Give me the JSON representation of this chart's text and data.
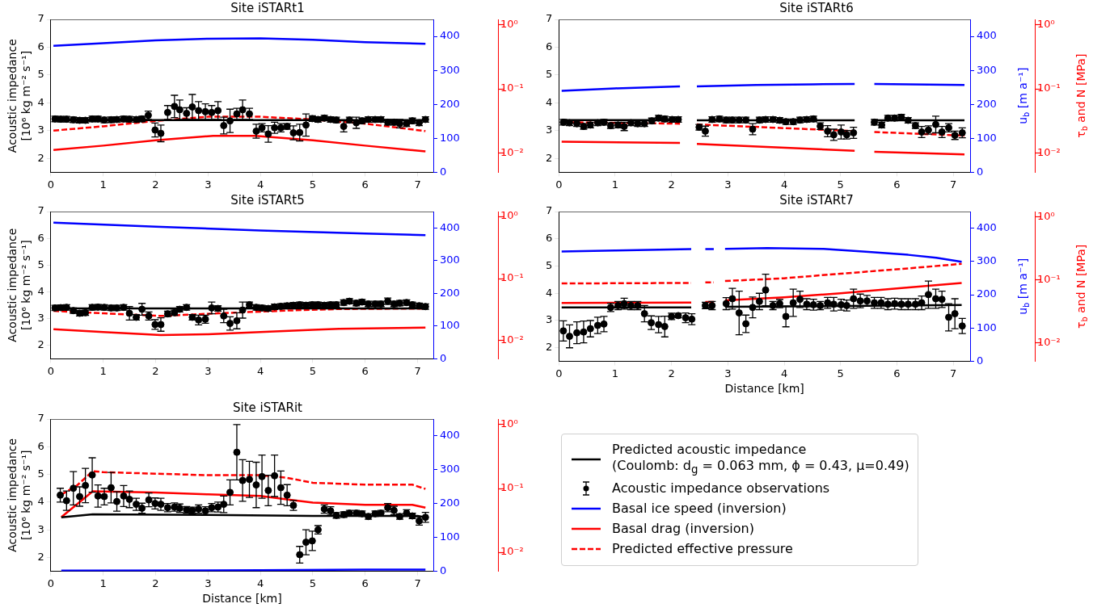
{
  "chart_data": [
    {
      "type": "line",
      "title": "Site iSTARt1",
      "ylabel": "Acoustic impedance\n[10⁶ kg m⁻² s⁻¹]",
      "xlim": [
        0,
        7.3
      ],
      "xticks": [
        0,
        1,
        2,
        3,
        4,
        5,
        6,
        7
      ],
      "ylim": [
        1.5,
        7
      ],
      "yticks": [
        2,
        3,
        4,
        5,
        6,
        7
      ],
      "y2lim": [
        0,
        450
      ],
      "y2ticks": [
        0,
        100,
        200,
        300,
        400
      ],
      "y3lim": [
        0.005,
        1.2
      ],
      "y3ticks": [
        {
          "value": 0.01,
          "label": "10⁻²"
        },
        {
          "value": 0.1,
          "label": "10⁻¹"
        },
        {
          "value": 1,
          "label": "10⁰"
        }
      ],
      "log": "y3",
      "series": [
        {
          "type": "line",
          "color": "#000000",
          "x": [
            0.05,
            7.15
          ],
          "values": [
            3.38,
            3.38
          ]
        },
        {
          "type": "scatter",
          "color": "#000000",
          "marker": "circle",
          "x": [
            0.08,
            0.19,
            0.3,
            0.43,
            0.55,
            0.66,
            0.79,
            0.9,
            1.02,
            1.15,
            1.26,
            1.39,
            1.5,
            1.63,
            1.74,
            1.86,
            1.99,
            2.1,
            2.23,
            2.36,
            2.46,
            2.59,
            2.7,
            2.82,
            2.95,
            3.07,
            3.19,
            3.3,
            3.42,
            3.55,
            3.66,
            3.79,
            3.92,
            4.03,
            4.15,
            4.27,
            4.39,
            4.51,
            4.63,
            4.75,
            4.87,
            4.99,
            5.1,
            5.22,
            5.34,
            5.45,
            5.59,
            5.7,
            5.83,
            5.94,
            6.06,
            6.19,
            6.3,
            6.43,
            6.55,
            6.66,
            6.79,
            6.9,
            7.03,
            7.15
          ],
          "values": [
            3.42,
            3.41,
            3.41,
            3.39,
            3.37,
            3.37,
            3.42,
            3.42,
            3.38,
            3.39,
            3.4,
            3.42,
            3.41,
            3.4,
            3.42,
            3.55,
            3.02,
            2.9,
            3.65,
            3.87,
            3.75,
            3.62,
            3.85,
            3.72,
            3.68,
            3.65,
            3.72,
            3.18,
            3.35,
            3.6,
            3.75,
            3.6,
            2.98,
            3.1,
            2.88,
            3.1,
            3.1,
            3.15,
            2.92,
            2.93,
            3.2,
            3.43,
            3.4,
            3.45,
            3.4,
            3.38,
            3.15,
            3.38,
            3.28,
            3.35,
            3.4,
            3.4,
            3.4,
            3.3,
            3.3,
            3.25,
            3.25,
            3.35,
            3.28,
            3.4
          ],
          "errors": [
            0.1,
            0.1,
            0.1,
            0.1,
            0.1,
            0.1,
            0.1,
            0.1,
            0.1,
            0.1,
            0.1,
            0.1,
            0.1,
            0.1,
            0.1,
            0.15,
            0.25,
            0.3,
            0.25,
            0.4,
            0.35,
            0.2,
            0.45,
            0.32,
            0.28,
            0.25,
            0.32,
            0.3,
            0.42,
            0.2,
            0.35,
            0.2,
            0.25,
            0.15,
            0.3,
            0.2,
            0.15,
            0.1,
            0.25,
            0.3,
            0.4,
            0.1,
            0.1,
            0.1,
            0.1,
            0.1,
            0.2,
            0.1,
            0.2,
            0.1,
            0.1,
            0.1,
            0.1,
            0.1,
            0.1,
            0.15,
            0.1,
            0.1,
            0.1,
            0.1
          ]
        },
        {
          "type": "line",
          "axis": "y2",
          "color": "#0000ff",
          "x": [
            0.05,
            1,
            2,
            3,
            4,
            5,
            6,
            7.15
          ],
          "values": [
            372,
            380,
            388,
            393,
            394,
            390,
            383,
            378
          ]
        },
        {
          "type": "line",
          "axis": "y3",
          "color": "#ff0000",
          "x": [
            0.05,
            1,
            2,
            3.1,
            3.9,
            5,
            6,
            7.15
          ],
          "values": [
            0.0111,
            0.013,
            0.0157,
            0.0185,
            0.0185,
            0.0157,
            0.013,
            0.0106
          ]
        },
        {
          "type": "line",
          "axis": "y3",
          "color": "#ff0000",
          "line_style": "dashed",
          "x": [
            0.05,
            1,
            2,
            3,
            4,
            5,
            6,
            7.15
          ],
          "values": [
            0.0223,
            0.026,
            0.0316,
            0.0366,
            0.0366,
            0.0332,
            0.0286,
            0.0219
          ]
        }
      ]
    },
    {
      "type": "line",
      "title": "Site iSTARt6",
      "y2label": "u$_{b}$ [m a⁻¹]",
      "y3label": "τ$_{b}$ and N [MPa]",
      "xlim": [
        0,
        7.3
      ],
      "xticks": [
        0,
        1,
        2,
        3,
        4,
        5,
        6,
        7
      ],
      "ylim": [
        1.5,
        7
      ],
      "yticks": [
        2,
        3,
        4,
        5,
        6,
        7
      ],
      "y2lim": [
        0,
        450
      ],
      "y2ticks": [
        0,
        100,
        200,
        300,
        400
      ],
      "y3lim": [
        0.005,
        1.2
      ],
      "y3ticks": [
        {
          "value": 0.01,
          "label": "10⁻²"
        },
        {
          "value": 0.1,
          "label": "10⁻¹"
        },
        {
          "value": 1,
          "label": "10⁰"
        }
      ],
      "log": "y3",
      "series": [
        {
          "type": "line",
          "color": "#000000",
          "x": [
            0.05,
            2.15,
            2.3,
            2.45,
            5.25,
            5.4,
            5.6,
            7.2
          ],
          "values": [
            3.38,
            3.38,
            null,
            3.37,
            3.37,
            null,
            3.37,
            3.37
          ]
        },
        {
          "type": "scatter",
          "color": "#000000",
          "marker": "circle",
          "x": [
            0.08,
            0.19,
            0.32,
            0.44,
            0.56,
            0.69,
            0.8,
            0.92,
            1.05,
            1.16,
            1.28,
            1.4,
            1.52,
            1.65,
            1.77,
            1.88,
            2.01,
            2.12,
            2.49,
            2.6,
            2.72,
            2.85,
            2.97,
            3.08,
            3.2,
            3.32,
            3.44,
            3.56,
            3.67,
            3.8,
            3.92,
            4.03,
            4.16,
            4.28,
            4.4,
            4.52,
            4.64,
            4.77,
            4.88,
            5.01,
            5.11,
            5.23,
            5.6,
            5.73,
            5.84,
            5.96,
            6.08,
            6.2,
            6.33,
            6.44,
            6.56,
            6.69,
            6.8,
            6.92,
            7.03,
            7.16
          ],
          "values": [
            3.3,
            3.28,
            3.25,
            3.15,
            3.2,
            3.28,
            3.3,
            3.18,
            3.2,
            3.15,
            3.28,
            3.25,
            3.25,
            3.35,
            3.45,
            3.42,
            3.4,
            3.4,
            3.12,
            2.98,
            3.4,
            3.42,
            3.38,
            3.38,
            3.38,
            3.38,
            3.05,
            3.38,
            3.4,
            3.4,
            3.37,
            3.32,
            3.32,
            3.38,
            3.4,
            3.42,
            3.16,
            2.98,
            2.85,
            2.95,
            2.85,
            2.92,
            3.3,
            3.2,
            3.45,
            3.45,
            3.48,
            3.37,
            3.18,
            2.95,
            3.02,
            3.22,
            2.95,
            3.1,
            2.83,
            2.92
          ],
          "errors": [
            0.1,
            0.1,
            0.1,
            0.1,
            0.1,
            0.1,
            0.1,
            0.1,
            0.1,
            0.15,
            0.1,
            0.1,
            0.1,
            0.1,
            0.1,
            0.1,
            0.1,
            0.1,
            0.1,
            0.18,
            0.1,
            0.1,
            0.1,
            0.1,
            0.1,
            0.1,
            0.2,
            0.1,
            0.1,
            0.1,
            0.1,
            0.1,
            0.1,
            0.1,
            0.1,
            0.1,
            0.12,
            0.2,
            0.2,
            0.25,
            0.15,
            0.2,
            0.1,
            0.1,
            0.1,
            0.1,
            0.1,
            0.1,
            0.1,
            0.2,
            0.15,
            0.3,
            0.2,
            0.15,
            0.15,
            0.18
          ]
        },
        {
          "type": "line",
          "axis": "y2",
          "color": "#0000ff",
          "x": [
            0.05,
            1,
            2.15,
            2.3,
            2.45,
            3.5,
            4.5,
            5.25,
            5.4,
            5.6,
            7.2
          ],
          "values": [
            240,
            247,
            253,
            null,
            253,
            257,
            259,
            260,
            null,
            260,
            257
          ]
        },
        {
          "type": "line",
          "axis": "y3",
          "color": "#ff0000",
          "x": [
            0.05,
            2.15,
            2.3,
            2.45,
            5.25,
            5.4,
            5.6,
            7.2
          ],
          "values": [
            0.015,
            0.0143,
            null,
            0.0138,
            0.0108,
            null,
            0.0104,
            0.0095
          ]
        },
        {
          "type": "line",
          "axis": "y3",
          "color": "#ff0000",
          "line_style": "dashed",
          "x": [
            0.05,
            2.15,
            2.3,
            2.45,
            5.25,
            5.4,
            5.6,
            7.2
          ],
          "values": [
            0.0301,
            0.0286,
            null,
            0.0278,
            0.0219,
            null,
            0.0212,
            0.0186
          ]
        }
      ]
    },
    {
      "type": "line",
      "title": "Site iSTARt5",
      "ylabel": "Acoustic impedance\n[10⁶ kg m⁻² s⁻¹]",
      "xlim": [
        0,
        7.3
      ],
      "xticks": [
        0,
        1,
        2,
        3,
        4,
        5,
        6,
        7
      ],
      "ylim": [
        1.5,
        7
      ],
      "yticks": [
        2,
        3,
        4,
        5,
        6,
        7
      ],
      "y2lim": [
        0,
        450
      ],
      "y2ticks": [
        0,
        100,
        200,
        300,
        400
      ],
      "y3lim": [
        0.005,
        1.2
      ],
      "y3ticks": [
        {
          "value": 0.01,
          "label": "10⁻²"
        },
        {
          "value": 0.1,
          "label": "10⁻¹"
        },
        {
          "value": 1,
          "label": "10⁰"
        }
      ],
      "log": "y3",
      "series": [
        {
          "type": "line",
          "color": "#000000",
          "x": [
            0.05,
            7.15
          ],
          "values": [
            3.38,
            3.38
          ]
        },
        {
          "type": "scatter",
          "color": "#000000",
          "marker": "circle",
          "x": [
            0.08,
            0.19,
            0.3,
            0.43,
            0.55,
            0.66,
            0.79,
            0.9,
            1.02,
            1.15,
            1.26,
            1.39,
            1.5,
            1.63,
            1.74,
            1.87,
            1.99,
            2.1,
            2.23,
            2.36,
            2.46,
            2.59,
            2.7,
            2.82,
            2.95,
            3.07,
            3.19,
            3.3,
            3.42,
            3.55,
            3.66,
            3.79,
            3.92,
            4.03,
            4.15,
            4.27,
            4.39,
            4.51,
            4.63,
            4.75,
            4.87,
            4.99,
            5.1,
            5.22,
            5.34,
            5.45,
            5.59,
            5.7,
            5.83,
            5.94,
            6.06,
            6.19,
            6.3,
            6.43,
            6.55,
            6.66,
            6.79,
            6.9,
            7.03,
            7.15
          ],
          "values": [
            3.4,
            3.41,
            3.42,
            3.3,
            3.2,
            3.22,
            3.42,
            3.43,
            3.42,
            3.4,
            3.4,
            3.42,
            3.2,
            3.05,
            3.35,
            3.1,
            2.78,
            2.78,
            3.18,
            3.22,
            3.35,
            3.42,
            3.05,
            2.95,
            2.98,
            3.4,
            3.38,
            3.1,
            2.82,
            2.92,
            3.32,
            3.52,
            3.42,
            3.4,
            3.38,
            3.44,
            3.46,
            3.48,
            3.5,
            3.52,
            3.5,
            3.52,
            3.52,
            3.5,
            3.52,
            3.52,
            3.6,
            3.65,
            3.58,
            3.62,
            3.55,
            3.55,
            3.55,
            3.65,
            3.55,
            3.58,
            3.6,
            3.52,
            3.48,
            3.45
          ],
          "errors": [
            0.1,
            0.1,
            0.1,
            0.1,
            0.1,
            0.1,
            0.1,
            0.1,
            0.1,
            0.1,
            0.1,
            0.1,
            0.25,
            0.1,
            0.22,
            0.15,
            0.18,
            0.25,
            0.1,
            0.1,
            0.1,
            0.1,
            0.1,
            0.18,
            0.15,
            0.22,
            0.1,
            0.25,
            0.25,
            0.3,
            0.3,
            0.1,
            0.1,
            0.1,
            0.1,
            0.1,
            0.1,
            0.1,
            0.1,
            0.1,
            0.1,
            0.1,
            0.1,
            0.1,
            0.1,
            0.1,
            0.1,
            0.1,
            0.1,
            0.1,
            0.1,
            0.1,
            0.1,
            0.12,
            0.1,
            0.1,
            0.1,
            0.1,
            0.1,
            0.1
          ]
        },
        {
          "type": "line",
          "axis": "y2",
          "color": "#0000ff",
          "x": [
            0.05,
            2,
            4,
            6,
            7.15
          ],
          "values": [
            416,
            404,
            392,
            383,
            378
          ]
        },
        {
          "type": "line",
          "axis": "y3",
          "color": "#ff0000",
          "x": [
            0.05,
            1,
            2.1,
            3,
            4,
            5,
            5.5,
            7.15
          ],
          "values": [
            0.015,
            0.0135,
            0.0121,
            0.0125,
            0.0135,
            0.0147,
            0.0153,
            0.016
          ]
        },
        {
          "type": "line",
          "axis": "y3",
          "color": "#ff0000",
          "line_style": "dashed",
          "x": [
            0.05,
            1,
            2.1,
            3.2,
            4.5,
            5.5,
            7.15
          ],
          "values": [
            0.0297,
            0.0272,
            0.0246,
            0.0272,
            0.0301,
            0.0319,
            0.0325
          ]
        }
      ]
    },
    {
      "type": "line",
      "title": "Site iSTARt7",
      "xlabel": "Distance [km]",
      "y2label": "u$_{b}$ [m a⁻¹]",
      "y3label": "τ$_{b}$ and N [MPa]",
      "xlim": [
        0,
        7.3
      ],
      "xticks": [
        0,
        1,
        2,
        3,
        4,
        5,
        6,
        7
      ],
      "ylim": [
        1.5,
        7
      ],
      "yticks": [
        2,
        3,
        4,
        5,
        6,
        7
      ],
      "y2lim": [
        0,
        450
      ],
      "y2ticks": [
        0,
        100,
        200,
        300,
        400
      ],
      "y3lim": [
        0.005,
        1.2
      ],
      "y3ticks": [
        {
          "value": 0.01,
          "label": "10⁻²"
        },
        {
          "value": 0.1,
          "label": "10⁻¹"
        },
        {
          "value": 1,
          "label": "10⁰"
        }
      ],
      "log": "y3",
      "series": [
        {
          "type": "line",
          "color": "#000000",
          "x": [
            0.05,
            2.35,
            2.48,
            2.6,
            2.75,
            2.85,
            2.95,
            7.15
          ],
          "values": [
            3.48,
            3.48,
            null,
            3.46,
            3.46,
            null,
            3.5,
            3.57
          ]
        },
        {
          "type": "scatter",
          "color": "#000000",
          "marker": "circle",
          "x": [
            0.08,
            0.19,
            0.32,
            0.44,
            0.56,
            0.69,
            0.8,
            0.92,
            1.05,
            1.16,
            1.28,
            1.4,
            1.52,
            1.64,
            1.77,
            1.88,
            2.0,
            2.12,
            2.25,
            2.36,
            2.6,
            2.72,
            2.97,
            3.08,
            3.2,
            3.32,
            3.44,
            3.56,
            3.67,
            3.8,
            3.92,
            4.03,
            4.16,
            4.28,
            4.4,
            4.52,
            4.64,
            4.77,
            4.88,
            5.01,
            5.11,
            5.23,
            5.35,
            5.47,
            5.6,
            5.72,
            5.84,
            5.96,
            6.08,
            6.2,
            6.33,
            6.44,
            6.56,
            6.69,
            6.8,
            6.92,
            7.03,
            7.16
          ],
          "values": [
            2.62,
            2.42,
            2.55,
            2.58,
            2.7,
            2.82,
            2.87,
            3.48,
            3.55,
            3.62,
            3.55,
            3.55,
            3.25,
            2.92,
            2.85,
            2.78,
            3.15,
            3.18,
            3.1,
            3.05,
            3.55,
            3.55,
            3.62,
            3.8,
            3.28,
            2.88,
            3.48,
            3.7,
            4.12,
            3.55,
            3.62,
            3.15,
            3.65,
            3.78,
            3.6,
            3.58,
            3.55,
            3.65,
            3.6,
            3.58,
            3.55,
            3.8,
            3.72,
            3.72,
            3.65,
            3.65,
            3.6,
            3.62,
            3.6,
            3.6,
            3.6,
            3.65,
            3.95,
            3.8,
            3.78,
            3.12,
            3.25,
            2.8
          ],
          "errors": [
            0.37,
            0.42,
            0.4,
            0.4,
            0.3,
            0.3,
            0.28,
            0.15,
            0.15,
            0.2,
            0.15,
            0.15,
            0.3,
            0.25,
            0.3,
            0.38,
            0.12,
            0.08,
            0.18,
            0.2,
            0.12,
            0.15,
            0.22,
            0.38,
            0.8,
            0.32,
            0.38,
            0.3,
            0.58,
            0.15,
            0.15,
            0.38,
            0.5,
            0.3,
            0.2,
            0.2,
            0.15,
            0.2,
            0.25,
            0.2,
            0.2,
            0.35,
            0.25,
            0.2,
            0.2,
            0.2,
            0.2,
            0.2,
            0.2,
            0.2,
            0.2,
            0.25,
            0.5,
            0.35,
            0.3,
            0.5,
            0.55,
            0.28
          ]
        },
        {
          "type": "line",
          "axis": "y2",
          "color": "#0000ff",
          "x": [
            0.05,
            1,
            2.35,
            2.48,
            2.6,
            2.75,
            2.85,
            2.95,
            3.7,
            4.7,
            5.5,
            6.2,
            6.7,
            7.15
          ],
          "values": [
            330,
            333,
            337,
            null,
            337,
            337,
            null,
            338,
            340,
            338,
            329,
            320,
            311,
            299
          ]
        },
        {
          "type": "line",
          "axis": "y3",
          "color": "#ff0000",
          "x": [
            0.05,
            2.35,
            2.48,
            2.6,
            2.75,
            2.85,
            2.95,
            4,
            5,
            6,
            7.15
          ],
          "values": [
            0.0422,
            0.0431,
            null,
            0.0439,
            0.0439,
            null,
            0.0466,
            0.052,
            0.0604,
            0.0723,
            0.0881
          ]
        },
        {
          "type": "line",
          "axis": "y3",
          "color": "#ff0000",
          "line_style": "dashed",
          "x": [
            0.05,
            2.35,
            2.48,
            2.6,
            2.75,
            2.85,
            2.95,
            4,
            5,
            6,
            7.15
          ],
          "values": [
            0.0864,
            0.0881,
            null,
            0.0899,
            0.0899,
            null,
            0.0945,
            0.1045,
            0.1236,
            0.145,
            0.177
          ]
        }
      ]
    },
    {
      "type": "line",
      "title": "Site iSTARit",
      "xlabel": "Distance [km]",
      "ylabel": "Acoustic impedance\n[10⁶ kg m⁻² s⁻¹]",
      "legend": "right",
      "xlim": [
        0,
        7.3
      ],
      "xticks": [
        0,
        1,
        2,
        3,
        4,
        5,
        6,
        7
      ],
      "ylim": [
        1.5,
        7
      ],
      "yticks": [
        2,
        3,
        4,
        5,
        6,
        7
      ],
      "y2lim": [
        0,
        450
      ],
      "y2ticks": [
        0,
        100,
        200,
        300,
        400
      ],
      "y3lim": [
        0.005,
        1.2
      ],
      "y3ticks": [
        {
          "value": 0.01,
          "label": "10⁻²"
        },
        {
          "value": 0.1,
          "label": "10⁻¹"
        },
        {
          "value": 1,
          "label": "10⁰"
        }
      ],
      "log": "y3",
      "series": [
        {
          "type": "line",
          "name": "Predicted acoustic impedance\n (Coulomb: d$_{g}$ = 0.063 mm, ϕ = 0.43, μ=0.49)",
          "color": "#000000",
          "x": [
            0.2,
            0.8,
            3,
            5,
            7,
            7.15
          ],
          "values": [
            3.45,
            3.56,
            3.54,
            3.5,
            3.5,
            3.45
          ]
        },
        {
          "type": "scatter",
          "name": "Acoustic impedance observations",
          "color": "#000000",
          "marker": "circle",
          "x": [
            0.18,
            0.3,
            0.43,
            0.55,
            0.66,
            0.79,
            0.9,
            1.02,
            1.15,
            1.26,
            1.39,
            1.5,
            1.63,
            1.74,
            1.87,
            1.99,
            2.1,
            2.23,
            2.36,
            2.46,
            2.59,
            2.7,
            2.82,
            2.95,
            3.07,
            3.19,
            3.3,
            3.42,
            3.55,
            3.66,
            3.79,
            3.92,
            4.03,
            4.15,
            4.27,
            4.39,
            4.51,
            4.63,
            4.75,
            4.87,
            4.99,
            5.1,
            5.22,
            5.34,
            5.45,
            5.59,
            5.7,
            5.83,
            5.94,
            6.06,
            6.19,
            6.3,
            6.43,
            6.55,
            6.66,
            6.79,
            6.9,
            7.03,
            7.15
          ],
          "values": [
            4.25,
            4.05,
            4.5,
            4.2,
            4.6,
            4.98,
            4.22,
            4.2,
            4.52,
            4.02,
            4.22,
            4.1,
            3.92,
            3.78,
            4.08,
            3.95,
            3.92,
            3.8,
            3.82,
            3.78,
            3.72,
            3.7,
            3.75,
            3.68,
            3.8,
            3.82,
            3.92,
            4.35,
            5.8,
            4.78,
            4.82,
            4.62,
            4.92,
            4.42,
            4.95,
            4.52,
            4.25,
            3.88,
            2.1,
            2.55,
            2.6,
            3.0,
            3.75,
            3.68,
            3.52,
            3.55,
            3.6,
            3.6,
            3.58,
            3.48,
            3.58,
            3.6,
            3.8,
            3.7,
            3.48,
            3.6,
            3.5,
            3.32,
            3.45
          ],
          "errors": [
            0.25,
            0.35,
            0.6,
            0.35,
            0.62,
            0.62,
            0.4,
            0.3,
            0.55,
            0.35,
            0.38,
            0.3,
            0.22,
            0.18,
            0.25,
            0.2,
            0.22,
            0.15,
            0.15,
            0.15,
            0.12,
            0.12,
            0.15,
            0.15,
            0.15,
            0.18,
            0.3,
            0.45,
            1.0,
            0.75,
            0.65,
            0.82,
            0.78,
            0.55,
            0.75,
            0.6,
            0.38,
            0.18,
            0.3,
            0.45,
            0.35,
            0.15,
            0.15,
            0.15,
            0.1,
            0.1,
            0.1,
            0.1,
            0.1,
            0.1,
            0.1,
            0.1,
            0.15,
            0.15,
            0.1,
            0.12,
            0.1,
            0.15,
            0.18
          ]
        },
        {
          "type": "line",
          "axis": "y2",
          "name": "Basal ice speed (inversion)",
          "color": "#0000ff",
          "x": [
            0.2,
            4,
            6,
            7.15
          ],
          "values": [
            2,
            3,
            5,
            5
          ]
        },
        {
          "type": "line",
          "axis": "y3",
          "name": "Basal drag (inversion)",
          "color": "#ff0000",
          "x": [
            0.2,
            0.8,
            2,
            3,
            4,
            4.5,
            5,
            6,
            6.9,
            7.15
          ],
          "values": [
            0.0352,
            0.089,
            0.0855,
            0.0798,
            0.0752,
            0.0667,
            0.0591,
            0.0546,
            0.0546,
            0.0494
          ]
        },
        {
          "type": "line",
          "axis": "y3",
          "name": "Predicted effective pressure",
          "color": "#ff0000",
          "line_style": "dashed",
          "x": [
            0.2,
            0.5,
            0.8,
            1,
            2,
            3,
            4,
            4.5,
            5,
            6,
            6.9,
            7.15
          ],
          "values": [
            0.079,
            0.11,
            0.184,
            0.177,
            0.168,
            0.159,
            0.159,
            0.145,
            0.121,
            0.113,
            0.113,
            0.097
          ]
        }
      ]
    }
  ]
}
